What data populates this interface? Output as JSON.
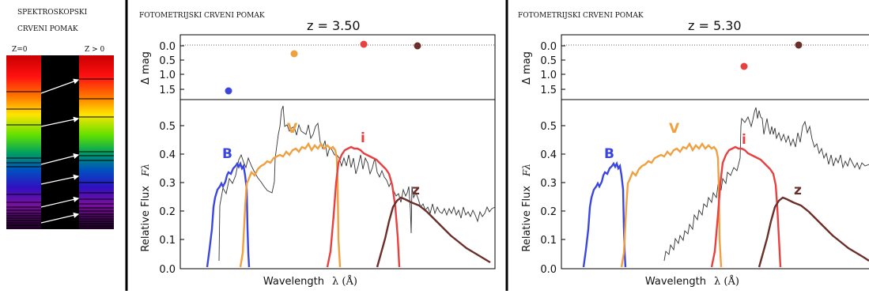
{
  "left_panel": {
    "title_line1": "SPEKTROSKOPSKI",
    "title_line2": "CRVENI POMAK",
    "label_z0": "Z=0",
    "label_zpos": "Z > 0"
  },
  "panels": [
    {
      "heading": "FOTOMETRIJSKI CRVENI POMAK",
      "redshift_label": "z = 3.50",
      "band_labels": [
        "B",
        "V",
        "i",
        "z"
      ]
    },
    {
      "heading": "FOTOMETRIJSKI CRVENI POMAK",
      "redshift_label": "z = 5.30",
      "band_labels": [
        "B",
        "V",
        "i",
        "z"
      ]
    }
  ],
  "axes": {
    "dmag_label": "Δ mag",
    "flux_label": "Relative Flux",
    "flux_symbol": "Fλ",
    "wavelength_label": "Wavelength",
    "wavelength_symbol": "λ (Å)",
    "dmag_ticks": [
      "0.0",
      "0.5",
      "1.0",
      "1.5"
    ],
    "flux_ticks": [
      "0.0",
      "0.1",
      "0.2",
      "0.3",
      "0.4",
      "0.5"
    ]
  },
  "colors": {
    "B": "#3b46e0",
    "V": "#f0a040",
    "i": "#e84040",
    "z": "#6b2f2a",
    "spectrum": "#333333"
  },
  "chart_data": [
    {
      "type": "scatter",
      "name": "z = 3.50",
      "dmag_points": [
        {
          "band": "B",
          "dmag": 1.6
        },
        {
          "band": "V",
          "dmag": 0.3
        },
        {
          "band": "i",
          "dmag": 0.0
        },
        {
          "band": "z",
          "dmag": 0.0
        }
      ],
      "ylim_dmag": [
        1.85,
        -0.2
      ],
      "ylim_flux": [
        0,
        0.58
      ]
    },
    {
      "type": "scatter",
      "name": "z = 5.30",
      "dmag_points": [
        {
          "band": "i",
          "dmag": 0.75
        },
        {
          "band": "z",
          "dmag": 0.0
        }
      ],
      "ylim_dmag": [
        1.85,
        -0.2
      ],
      "ylim_flux": [
        0,
        0.58
      ]
    }
  ]
}
